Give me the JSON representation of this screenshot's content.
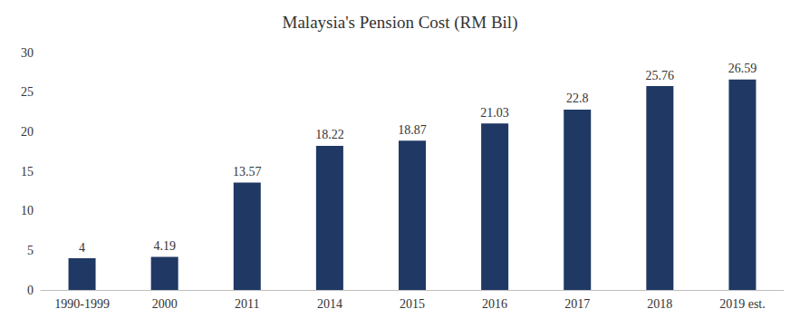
{
  "chart_data": {
    "type": "bar",
    "title": "Malaysia's Pension Cost (RM Bil)",
    "categories": [
      "1990-1999",
      "2000",
      "2011",
      "2014",
      "2015",
      "2016",
      "2017",
      "2018",
      "2019 est."
    ],
    "values": [
      4,
      4.19,
      13.57,
      18.22,
      18.87,
      21.03,
      22.8,
      25.76,
      26.59
    ],
    "color": "#203864",
    "ylim": [
      0,
      30
    ],
    "yticks": [
      0,
      5,
      10,
      15,
      20,
      25,
      30
    ],
    "grid": false,
    "data_labels": true
  }
}
